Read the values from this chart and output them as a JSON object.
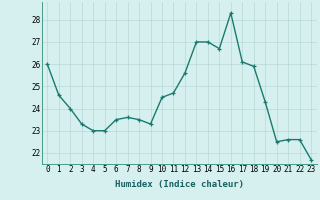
{
  "x": [
    0,
    1,
    2,
    3,
    4,
    5,
    6,
    7,
    8,
    9,
    10,
    11,
    12,
    13,
    14,
    15,
    16,
    17,
    18,
    19,
    20,
    21,
    22,
    23
  ],
  "y": [
    26.0,
    24.6,
    24.0,
    23.3,
    23.0,
    23.0,
    23.5,
    23.6,
    23.5,
    23.3,
    24.5,
    24.7,
    25.6,
    27.0,
    27.0,
    26.7,
    28.3,
    26.1,
    25.9,
    24.3,
    22.5,
    22.6,
    22.6,
    21.7
  ],
  "line_color": "#1a7a6e",
  "marker": "+",
  "marker_size": 3,
  "bg_color": "#d6f0f0",
  "grid_color": "#b8d8d8",
  "xlabel": "Humidex (Indice chaleur)",
  "ylabel": "",
  "ylim": [
    21.5,
    28.8
  ],
  "xlim": [
    -0.5,
    23.5
  ],
  "yticks": [
    22,
    23,
    24,
    25,
    26,
    27,
    28
  ],
  "xticks": [
    0,
    1,
    2,
    3,
    4,
    5,
    6,
    7,
    8,
    9,
    10,
    11,
    12,
    13,
    14,
    15,
    16,
    17,
    18,
    19,
    20,
    21,
    22,
    23
  ],
  "xlabel_fontsize": 6.5,
  "tick_fontsize": 5.5,
  "line_width": 1.0,
  "fig_bg_color": "#d6f0f0",
  "spine_color": "#4a9a8a"
}
